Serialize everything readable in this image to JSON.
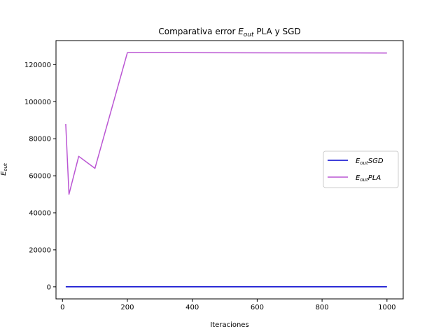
{
  "chart_data": {
    "type": "line",
    "title_main": "Comparativa error ",
    "title_sym": "E",
    "title_sub": "out",
    "title_rest": " PLA y SGD",
    "xlabel": "Iteraciones",
    "ylabel_sym": "E",
    "ylabel_sub": "out",
    "xlim": [
      -20,
      1050
    ],
    "ylim": [
      -6500,
      133000
    ],
    "xticks": [
      0,
      200,
      400,
      600,
      800,
      1000
    ],
    "yticks": [
      0,
      20000,
      40000,
      60000,
      80000,
      100000,
      120000
    ],
    "legend_position": "center-right",
    "grid": false,
    "series": [
      {
        "sym": "E",
        "sub": "out",
        "suffix": "SGD",
        "color": "#0000cd",
        "x": [
          10,
          20,
          50,
          100,
          200,
          1000
        ],
        "y": [
          0,
          0,
          0,
          0,
          0,
          0
        ]
      },
      {
        "sym": "E",
        "sub": "out",
        "suffix": "PLA",
        "color": "#ba55d3",
        "x": [
          10,
          20,
          50,
          100,
          200,
          1000
        ],
        "y": [
          88000,
          50000,
          70500,
          64000,
          126500,
          126300
        ]
      }
    ]
  }
}
